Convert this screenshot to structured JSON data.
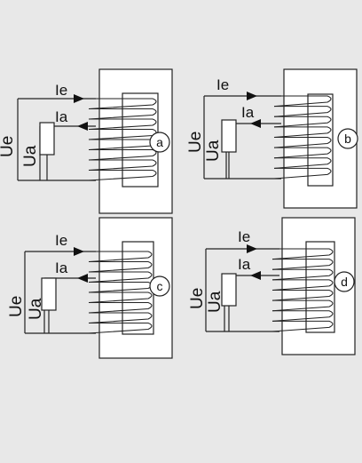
{
  "figure": {
    "background": "#e8e8e8",
    "line_color": "#222222",
    "panels": [
      {
        "id": "a",
        "badge": "a",
        "current_in": "Ie",
        "current_out": "Ia",
        "voltage_in": "Ue",
        "voltage_out": "Ua"
      },
      {
        "id": "b",
        "badge": "b",
        "current_in": "Ie",
        "current_out": "Ia",
        "voltage_in": "Ue",
        "voltage_out": "Ua"
      },
      {
        "id": "c",
        "badge": "c",
        "current_in": "Ie",
        "current_out": "Ia",
        "voltage_in": "Ue",
        "voltage_out": "Ua"
      },
      {
        "id": "d",
        "badge": "d",
        "current_in": "Ie",
        "current_out": "Ia",
        "voltage_in": "Ue",
        "voltage_out": "Ua"
      }
    ]
  }
}
